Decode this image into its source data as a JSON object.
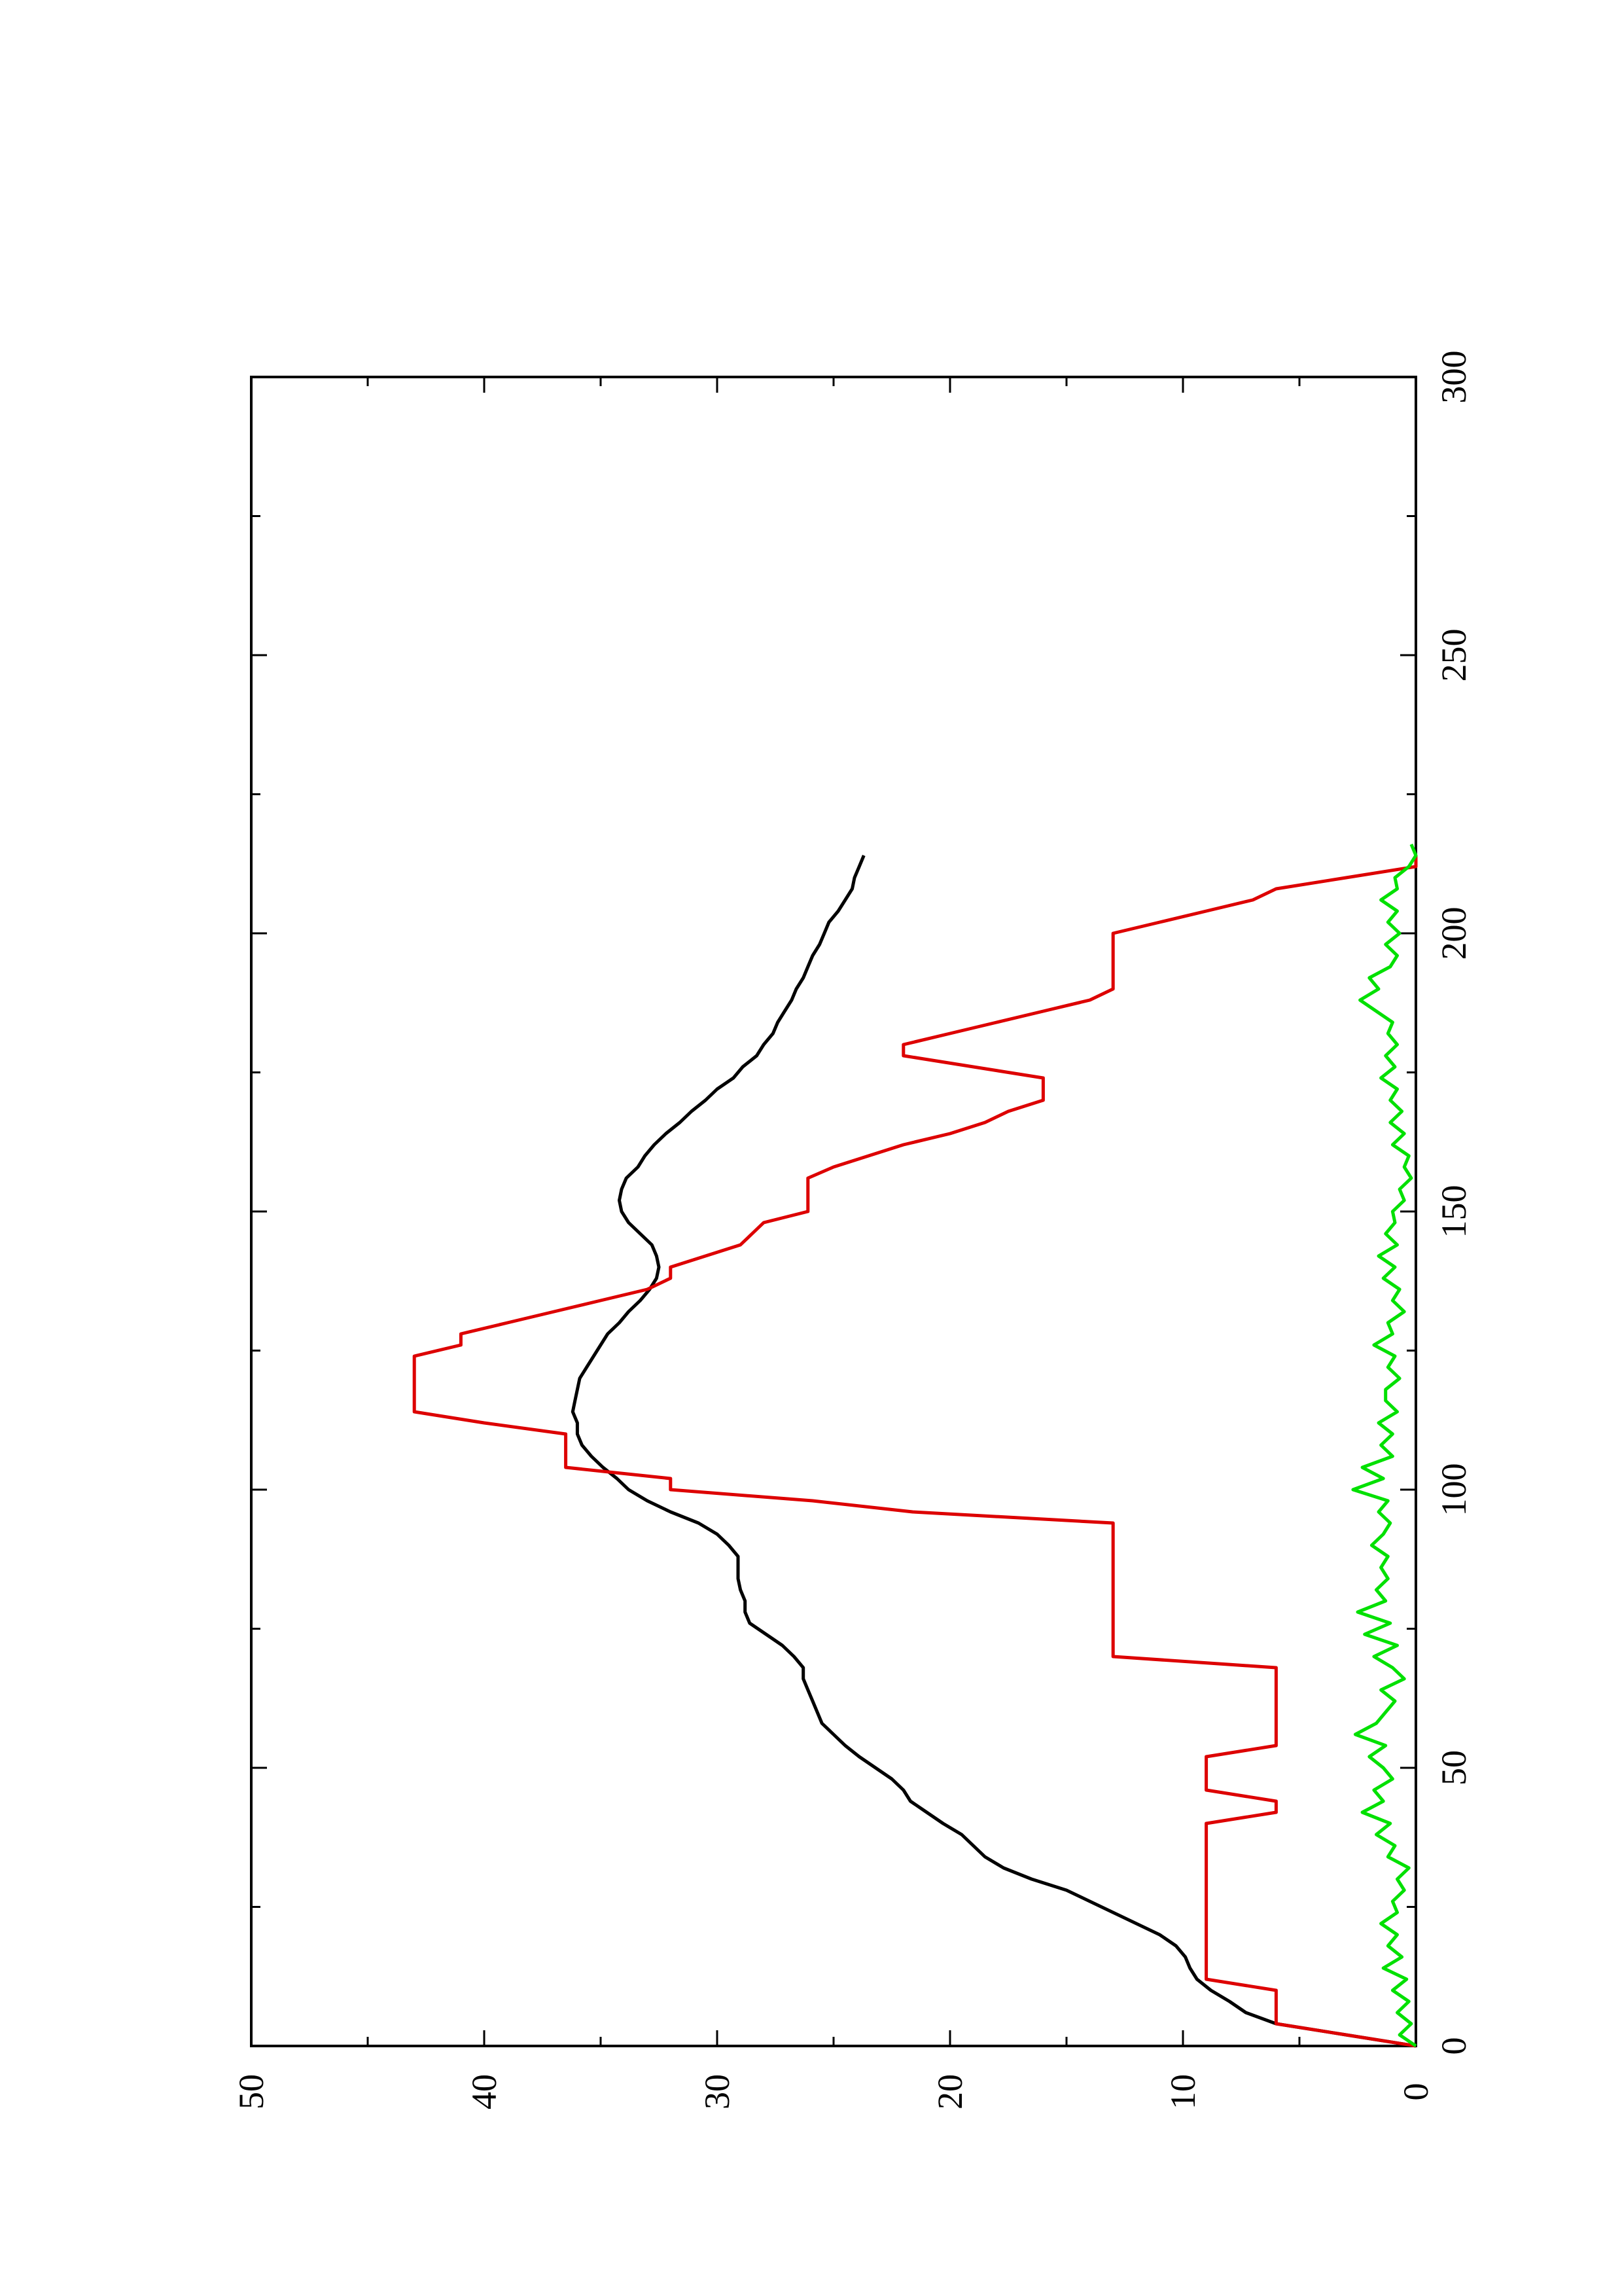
{
  "chart_data": {
    "type": "line",
    "orientation": "rotated-90-ccw",
    "title": "",
    "xlabel": "",
    "ylabel": "",
    "xlim": [
      0,
      300
    ],
    "ylim": [
      0,
      50
    ],
    "x_ticks": [
      0,
      50,
      100,
      150,
      200,
      250,
      300
    ],
    "y_ticks": [
      0,
      10,
      20,
      30,
      40,
      50
    ],
    "x_tick_labels": [
      "0",
      "50",
      "100",
      "150",
      "200",
      "250",
      "300"
    ],
    "y_tick_labels": [
      "0",
      "10",
      "20",
      "30",
      "40",
      "50"
    ],
    "grid": false,
    "legend": "none",
    "series": [
      {
        "color": "#000000",
        "points": [
          [
            0,
            0
          ],
          [
            2,
            3
          ],
          [
            4,
            6
          ],
          [
            6,
            7.3
          ],
          [
            8,
            8
          ],
          [
            10,
            8.8
          ],
          [
            12,
            9.4
          ],
          [
            14,
            9.7
          ],
          [
            16,
            9.9
          ],
          [
            18,
            10.3
          ],
          [
            20,
            11
          ],
          [
            22,
            12
          ],
          [
            24,
            13
          ],
          [
            26,
            14
          ],
          [
            28,
            15
          ],
          [
            30,
            16.5
          ],
          [
            32,
            17.7
          ],
          [
            34,
            18.5
          ],
          [
            36,
            19
          ],
          [
            38,
            19.5
          ],
          [
            40,
            20.3
          ],
          [
            42,
            21
          ],
          [
            44,
            21.7
          ],
          [
            46,
            22
          ],
          [
            48,
            22.5
          ],
          [
            50,
            23.2
          ],
          [
            52,
            23.9
          ],
          [
            54,
            24.5
          ],
          [
            56,
            25
          ],
          [
            58,
            25.5
          ],
          [
            60,
            25.7
          ],
          [
            62,
            25.9
          ],
          [
            64,
            26.1
          ],
          [
            66,
            26.3
          ],
          [
            68,
            26.3
          ],
          [
            70,
            26.7
          ],
          [
            72,
            27.2
          ],
          [
            74,
            27.9
          ],
          [
            76,
            28.6
          ],
          [
            78,
            28.8
          ],
          [
            80,
            28.8
          ],
          [
            82,
            29
          ],
          [
            84,
            29.1
          ],
          [
            86,
            29.1
          ],
          [
            88,
            29.1
          ],
          [
            90,
            29.5
          ],
          [
            92,
            30
          ],
          [
            94,
            30.8
          ],
          [
            96,
            32
          ],
          [
            98,
            33
          ],
          [
            100,
            33.8
          ],
          [
            102,
            34.3
          ],
          [
            104,
            34.9
          ],
          [
            106,
            35.4
          ],
          [
            108,
            35.8
          ],
          [
            110,
            36
          ],
          [
            112,
            36
          ],
          [
            114,
            36.2
          ],
          [
            116,
            36.1
          ],
          [
            118,
            36
          ],
          [
            120,
            35.9
          ],
          [
            122,
            35.6
          ],
          [
            124,
            35.3
          ],
          [
            126,
            35
          ],
          [
            128,
            34.7
          ],
          [
            130,
            34.2
          ],
          [
            132,
            33.8
          ],
          [
            134,
            33.3
          ],
          [
            136,
            32.9
          ],
          [
            138,
            32.6
          ],
          [
            140,
            32.5
          ],
          [
            142,
            32.6
          ],
          [
            144,
            32.8
          ],
          [
            146,
            33.3
          ],
          [
            148,
            33.8
          ],
          [
            150,
            34.1
          ],
          [
            152,
            34.2
          ],
          [
            154,
            34.1
          ],
          [
            156,
            33.9
          ],
          [
            158,
            33.4
          ],
          [
            160,
            33.1
          ],
          [
            162,
            32.7
          ],
          [
            164,
            32.2
          ],
          [
            166,
            31.6
          ],
          [
            168,
            31.1
          ],
          [
            170,
            30.5
          ],
          [
            172,
            30
          ],
          [
            174,
            29.3
          ],
          [
            176,
            28.9
          ],
          [
            178,
            28.3
          ],
          [
            180,
            28
          ],
          [
            182,
            27.6
          ],
          [
            184,
            27.4
          ],
          [
            186,
            27.1
          ],
          [
            188,
            26.8
          ],
          [
            190,
            26.6
          ],
          [
            192,
            26.3
          ],
          [
            194,
            26.1
          ],
          [
            196,
            25.9
          ],
          [
            198,
            25.6
          ],
          [
            200,
            25.4
          ],
          [
            202,
            25.2
          ],
          [
            204,
            24.8
          ],
          [
            206,
            24.5
          ],
          [
            208,
            24.2
          ],
          [
            210,
            24.1
          ],
          [
            212,
            23.9
          ],
          [
            214,
            23.7
          ]
        ]
      },
      {
        "color": "#dd0000",
        "points": [
          [
            0,
            0
          ],
          [
            2,
            3
          ],
          [
            4,
            6
          ],
          [
            6,
            6
          ],
          [
            8,
            6
          ],
          [
            10,
            6
          ],
          [
            12,
            9
          ],
          [
            14,
            9
          ],
          [
            16,
            9
          ],
          [
            18,
            9
          ],
          [
            20,
            9
          ],
          [
            22,
            9
          ],
          [
            24,
            9
          ],
          [
            26,
            9
          ],
          [
            28,
            9
          ],
          [
            30,
            9
          ],
          [
            32,
            9
          ],
          [
            34,
            9
          ],
          [
            36,
            9
          ],
          [
            38,
            9
          ],
          [
            40,
            9
          ],
          [
            42,
            6
          ],
          [
            44,
            6
          ],
          [
            46,
            9
          ],
          [
            48,
            9
          ],
          [
            50,
            9
          ],
          [
            52,
            9
          ],
          [
            54,
            6
          ],
          [
            56,
            6
          ],
          [
            58,
            6
          ],
          [
            60,
            6
          ],
          [
            62,
            6
          ],
          [
            64,
            6
          ],
          [
            66,
            6
          ],
          [
            68,
            6
          ],
          [
            70,
            13
          ],
          [
            72,
            13
          ],
          [
            74,
            13
          ],
          [
            76,
            13
          ],
          [
            78,
            13
          ],
          [
            80,
            13
          ],
          [
            82,
            13
          ],
          [
            84,
            13
          ],
          [
            86,
            13
          ],
          [
            88,
            13
          ],
          [
            90,
            13
          ],
          [
            92,
            13
          ],
          [
            94,
            13
          ],
          [
            96,
            21.6
          ],
          [
            98,
            25.9
          ],
          [
            100,
            32
          ],
          [
            102,
            32
          ],
          [
            104,
            36.5
          ],
          [
            106,
            36.5
          ],
          [
            108,
            36.5
          ],
          [
            110,
            36.5
          ],
          [
            112,
            40
          ],
          [
            114,
            43
          ],
          [
            116,
            43
          ],
          [
            118,
            43
          ],
          [
            120,
            43
          ],
          [
            122,
            43
          ],
          [
            124,
            43
          ],
          [
            126,
            41
          ],
          [
            128,
            41
          ],
          [
            130,
            39
          ],
          [
            132,
            37
          ],
          [
            134,
            35
          ],
          [
            136,
            33
          ],
          [
            138,
            32
          ],
          [
            140,
            32
          ],
          [
            142,
            30.5
          ],
          [
            144,
            29
          ],
          [
            146,
            28.5
          ],
          [
            148,
            28
          ],
          [
            150,
            26.1
          ],
          [
            152,
            26.1
          ],
          [
            154,
            26.1
          ],
          [
            156,
            26.1
          ],
          [
            158,
            25
          ],
          [
            160,
            23.5
          ],
          [
            162,
            22
          ],
          [
            164,
            20
          ],
          [
            166,
            18.5
          ],
          [
            168,
            17.5
          ],
          [
            170,
            16
          ],
          [
            172,
            16
          ],
          [
            174,
            16
          ],
          [
            176,
            19
          ],
          [
            178,
            22
          ],
          [
            180,
            22
          ],
          [
            182,
            20
          ],
          [
            184,
            18
          ],
          [
            186,
            16
          ],
          [
            188,
            14
          ],
          [
            190,
            13
          ],
          [
            192,
            13
          ],
          [
            194,
            13
          ],
          [
            196,
            13
          ],
          [
            198,
            13
          ],
          [
            200,
            13
          ],
          [
            202,
            11
          ],
          [
            204,
            9
          ],
          [
            206,
            7
          ],
          [
            208,
            6
          ],
          [
            210,
            3
          ],
          [
            212,
            0
          ],
          [
            214,
            0
          ]
        ]
      },
      {
        "color": "#00e000",
        "points": [
          [
            0,
            0
          ],
          [
            2,
            0.7
          ],
          [
            4,
            0.2
          ],
          [
            6,
            0.8
          ],
          [
            8,
            0.3
          ],
          [
            10,
            1
          ],
          [
            12,
            0.4
          ],
          [
            14,
            1.4
          ],
          [
            16,
            0.6
          ],
          [
            18,
            1.2
          ],
          [
            20,
            0.8
          ],
          [
            22,
            1.5
          ],
          [
            24,
            0.8
          ],
          [
            26,
            1
          ],
          [
            28,
            0.5
          ],
          [
            30,
            0.8
          ],
          [
            32,
            0.3
          ],
          [
            34,
            1.2
          ],
          [
            36,
            0.9
          ],
          [
            38,
            1.7
          ],
          [
            40,
            1.1
          ],
          [
            42,
            2.3
          ],
          [
            44,
            1.4
          ],
          [
            46,
            1.8
          ],
          [
            48,
            1
          ],
          [
            50,
            1.4
          ],
          [
            52,
            2
          ],
          [
            54,
            1.3
          ],
          [
            56,
            2.6
          ],
          [
            58,
            1.7
          ],
          [
            60,
            1.3
          ],
          [
            62,
            0.9
          ],
          [
            64,
            1.5
          ],
          [
            66,
            0.5
          ],
          [
            68,
            1
          ],
          [
            70,
            1.8
          ],
          [
            72,
            0.8
          ],
          [
            74,
            2.2
          ],
          [
            76,
            1.1
          ],
          [
            78,
            2.5
          ],
          [
            80,
            1.3
          ],
          [
            82,
            1.7
          ],
          [
            84,
            1.2
          ],
          [
            86,
            1.5
          ],
          [
            88,
            1.2
          ],
          [
            90,
            1.9
          ],
          [
            92,
            1.4
          ],
          [
            94,
            1.1
          ],
          [
            96,
            1.6
          ],
          [
            98,
            1.2
          ],
          [
            100,
            2.7
          ],
          [
            102,
            1.4
          ],
          [
            104,
            2.3
          ],
          [
            106,
            1
          ],
          [
            108,
            1.5
          ],
          [
            110,
            1
          ],
          [
            112,
            1.6
          ],
          [
            114,
            0.8
          ],
          [
            116,
            1.3
          ],
          [
            118,
            1.3
          ],
          [
            120,
            0.7
          ],
          [
            122,
            1.2
          ],
          [
            124,
            0.9
          ],
          [
            126,
            1.8
          ],
          [
            128,
            1
          ],
          [
            130,
            1.2
          ],
          [
            132,
            0.5
          ],
          [
            134,
            1
          ],
          [
            136,
            0.7
          ],
          [
            138,
            1.4
          ],
          [
            140,
            0.9
          ],
          [
            142,
            1.6
          ],
          [
            144,
            0.8
          ],
          [
            146,
            1.3
          ],
          [
            148,
            0.9
          ],
          [
            150,
            1
          ],
          [
            152,
            0.5
          ],
          [
            154,
            0.7
          ],
          [
            156,
            0.2
          ],
          [
            158,
            0.5
          ],
          [
            160,
            0.3
          ],
          [
            162,
            1
          ],
          [
            164,
            0.5
          ],
          [
            166,
            1.1
          ],
          [
            168,
            0.6
          ],
          [
            170,
            1.1
          ],
          [
            172,
            0.8
          ],
          [
            174,
            1.5
          ],
          [
            176,
            0.9
          ],
          [
            178,
            1.3
          ],
          [
            180,
            0.8
          ],
          [
            182,
            1.2
          ],
          [
            184,
            1
          ],
          [
            186,
            1.7
          ],
          [
            188,
            2.4
          ],
          [
            190,
            1.6
          ],
          [
            192,
            2
          ],
          [
            194,
            1.1
          ],
          [
            196,
            0.8
          ],
          [
            198,
            1.3
          ],
          [
            200,
            0.7
          ],
          [
            202,
            1.2
          ],
          [
            204,
            0.8
          ],
          [
            206,
            1.5
          ],
          [
            208,
            0.8
          ],
          [
            210,
            0.9
          ],
          [
            212,
            0.3
          ],
          [
            214,
            0
          ],
          [
            216,
            0.2
          ]
        ]
      }
    ]
  }
}
